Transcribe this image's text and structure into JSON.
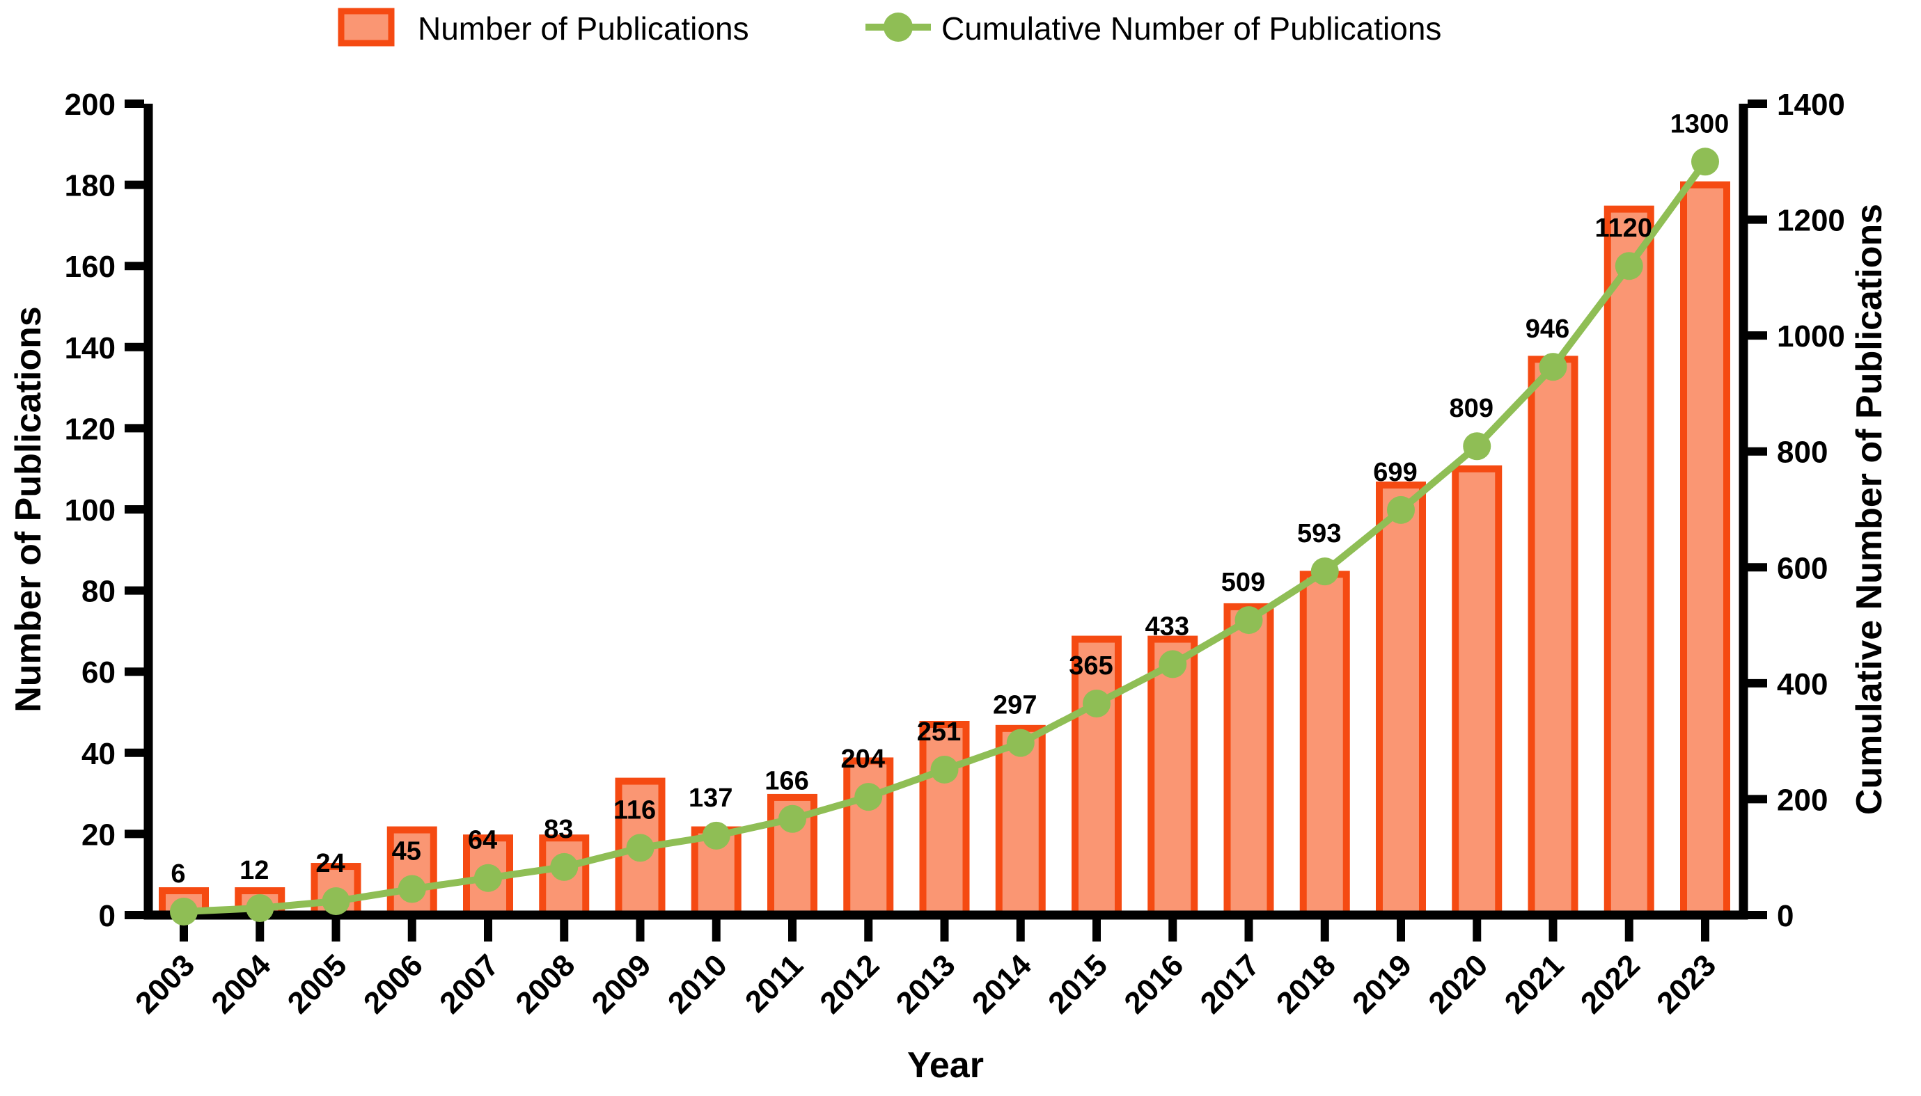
{
  "chart_data": {
    "type": "bar+line",
    "title": "",
    "categories": [
      "2003",
      "2004",
      "2005",
      "2006",
      "2007",
      "2008",
      "2009",
      "2010",
      "2011",
      "2012",
      "2013",
      "2014",
      "2015",
      "2016",
      "2017",
      "2018",
      "2019",
      "2020",
      "2021",
      "2022",
      "2023"
    ],
    "series": [
      {
        "name": "Number of Publications",
        "type": "bar",
        "yaxis": "left",
        "values": [
          6,
          6,
          12,
          21,
          19,
          19,
          33,
          21,
          29,
          38,
          47,
          46,
          68,
          68,
          76,
          84,
          106,
          110,
          137,
          174,
          180
        ]
      },
      {
        "name": "Cumulative Number of Publications",
        "type": "line",
        "yaxis": "right",
        "values": [
          6,
          12,
          24,
          45,
          64,
          83,
          116,
          137,
          166,
          204,
          251,
          297,
          365,
          433,
          509,
          593,
          699,
          809,
          946,
          1120,
          1300
        ],
        "point_labels": [
          "6",
          "12",
          "24",
          "45",
          "64",
          "83",
          "116",
          "137",
          "166",
          "204",
          "251",
          "297",
          "365",
          "433",
          "509",
          "593",
          "699",
          "809",
          "946",
          "1120",
          "1300"
        ]
      }
    ],
    "xlabel": "Year",
    "left_axis": {
      "label": "Number of Publications",
      "min": 0,
      "max": 200,
      "step": 20
    },
    "right_axis": {
      "label": "Cumulative Number of Publications",
      "min": 0,
      "max": 1400,
      "step": 200
    },
    "legend": [
      {
        "label": "Number of Publications",
        "swatch": "bar"
      },
      {
        "label": "Cumulative Number of Publications",
        "swatch": "line-marker"
      }
    ],
    "grid": false,
    "legend_position": "top",
    "colors": {
      "bar_fill": "#FA9673",
      "bar_border": "#F54A12",
      "line": "#8FBE55",
      "axis": "#000000",
      "text": "#000000",
      "background": "#FFFFFF"
    }
  }
}
